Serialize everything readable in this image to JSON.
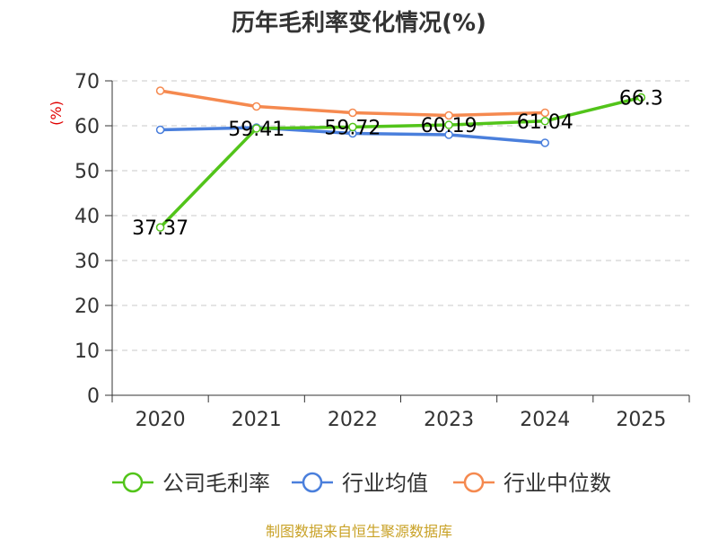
{
  "chart_data": {
    "type": "line",
    "title": "历年毛利率变化情况(%)",
    "unit_label": "(%)",
    "categories": [
      "2020",
      "2021",
      "2022",
      "2023",
      "2024",
      "2025"
    ],
    "ylim": [
      0,
      70
    ],
    "yticks": [
      "0",
      "10",
      "20",
      "30",
      "40",
      "50",
      "60",
      "70"
    ],
    "grid": true,
    "legend_position": "bottom",
    "series": [
      {
        "name": "公司毛利率",
        "color": "#52c41a",
        "values": [
          37.37,
          59.41,
          59.72,
          60.19,
          61.04,
          66.3
        ],
        "labels": [
          "37.37",
          "59.41",
          "59.72",
          "60.19",
          "61.04",
          "66.3"
        ]
      },
      {
        "name": "行业均值",
        "color": "#4a7fdc",
        "values": [
          59.1,
          59.6,
          58.3,
          58.0,
          56.2,
          null
        ]
      },
      {
        "name": "行业中位数",
        "color": "#f5894f",
        "values": [
          67.8,
          64.3,
          62.9,
          62.3,
          62.9,
          null
        ]
      }
    ]
  },
  "source": "制图数据来自恒生聚源数据库"
}
